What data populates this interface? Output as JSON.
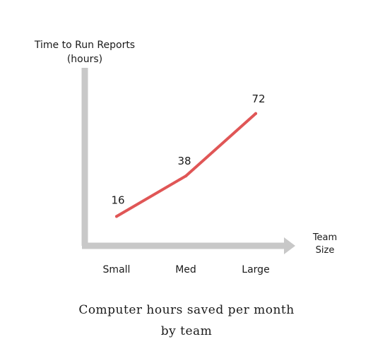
{
  "chart_data": {
    "type": "line",
    "title": "",
    "caption": [
      "Computer hours saved per month",
      "by team"
    ],
    "ylabel": [
      "Time to Run Reports",
      "(hours)"
    ],
    "xlabel": [
      "Team",
      "Size"
    ],
    "categories": [
      "Small",
      "Med",
      "Large"
    ],
    "values": [
      16,
      38,
      72
    ],
    "data_labels": [
      "16",
      "38",
      "72"
    ],
    "ylim": [
      0,
      100
    ],
    "grid": false,
    "legend": "none",
    "colors": {
      "line": "#e05656",
      "axis": "#c8c8c8",
      "text": "#1a1a1a"
    }
  }
}
